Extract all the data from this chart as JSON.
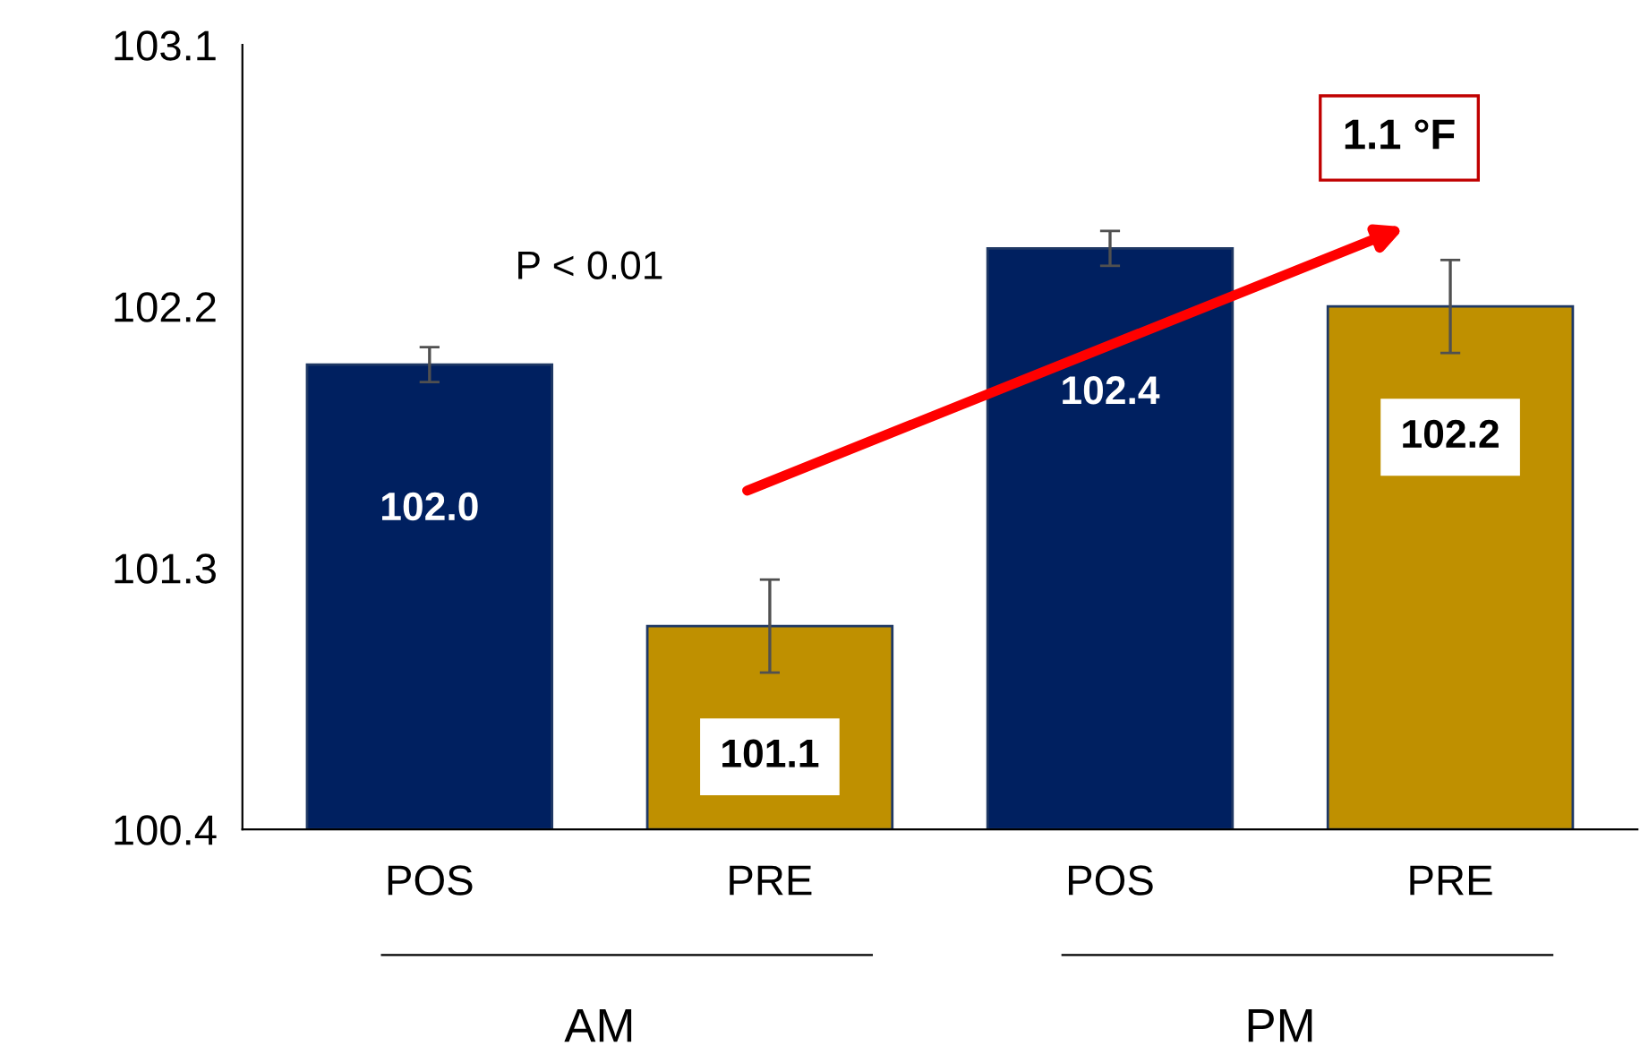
{
  "chart_data": {
    "type": "bar",
    "categories": [
      "POS",
      "PRE",
      "POS",
      "PRE"
    ],
    "values": [
      102.0,
      101.1,
      102.4,
      102.2
    ],
    "colors": [
      "#002060",
      "#bf9000",
      "#002060",
      "#bf9000"
    ],
    "errors": [
      0.06,
      0.16,
      0.06,
      0.16
    ],
    "ylim": [
      100.4,
      103.1
    ],
    "yticks": [
      100.4,
      101.3,
      102.2,
      103.1
    ],
    "value_labels": [
      "102.0",
      "101.1",
      "102.4",
      "102.2"
    ],
    "grid": false,
    "legend": false,
    "annotations": [
      "P < 0.01",
      "1.1 °F",
      "AM",
      "PM"
    ]
  }
}
